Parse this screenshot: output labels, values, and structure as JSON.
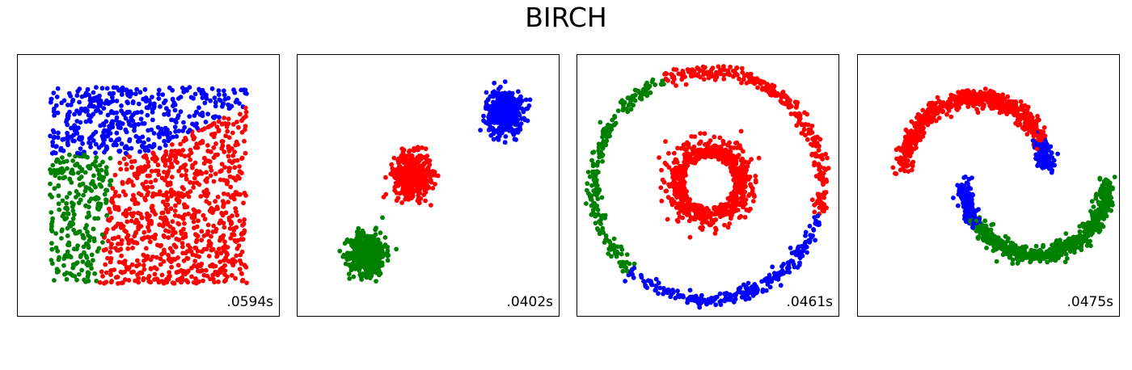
{
  "title": "BIRCH",
  "colors": {
    "red": "#ff0000",
    "green": "#008000",
    "blue": "#0000ff"
  },
  "chart_data": [
    {
      "type": "scatter",
      "dataset": "uniform-square",
      "time_label": ".0594s",
      "xlim": [
        -2.3,
        2.3
      ],
      "ylim": [
        -2.3,
        2.3
      ],
      "clusters": [
        {
          "color": "red",
          "region": "right"
        },
        {
          "color": "blue",
          "region": "top-left"
        },
        {
          "color": "green",
          "region": "bottom-left"
        }
      ]
    },
    {
      "type": "scatter",
      "dataset": "three-blobs",
      "time_label": ".0402s",
      "xlim": [
        -2.5,
        2.5
      ],
      "ylim": [
        -2.5,
        2.5
      ],
      "clusters": [
        {
          "color": "green",
          "center": [
            -1.15,
            -1.3
          ]
        },
        {
          "color": "red",
          "center": [
            -0.3,
            0.2
          ]
        },
        {
          "color": "blue",
          "center": [
            1.45,
            1.4
          ]
        }
      ]
    },
    {
      "type": "scatter",
      "dataset": "noisy-circles",
      "time_label": ".0461s",
      "xlim": [
        -2.3,
        2.3
      ],
      "ylim": [
        -2.3,
        2.3
      ],
      "clusters": [
        {
          "color": "red",
          "shape": "inner-circle-and-upper-right-arc"
        },
        {
          "color": "green",
          "shape": "left-arc"
        },
        {
          "color": "blue",
          "shape": "bottom-arc"
        }
      ]
    },
    {
      "type": "scatter",
      "dataset": "noisy-moons",
      "time_label": ".0475s",
      "xlim": [
        -2.5,
        2.5
      ],
      "ylim": [
        -2.5,
        2.5
      ],
      "clusters": [
        {
          "color": "red",
          "shape": "upper-moon-left"
        },
        {
          "color": "blue",
          "shape": "middle-segments"
        },
        {
          "color": "green",
          "shape": "lower-moon-right"
        }
      ]
    }
  ]
}
